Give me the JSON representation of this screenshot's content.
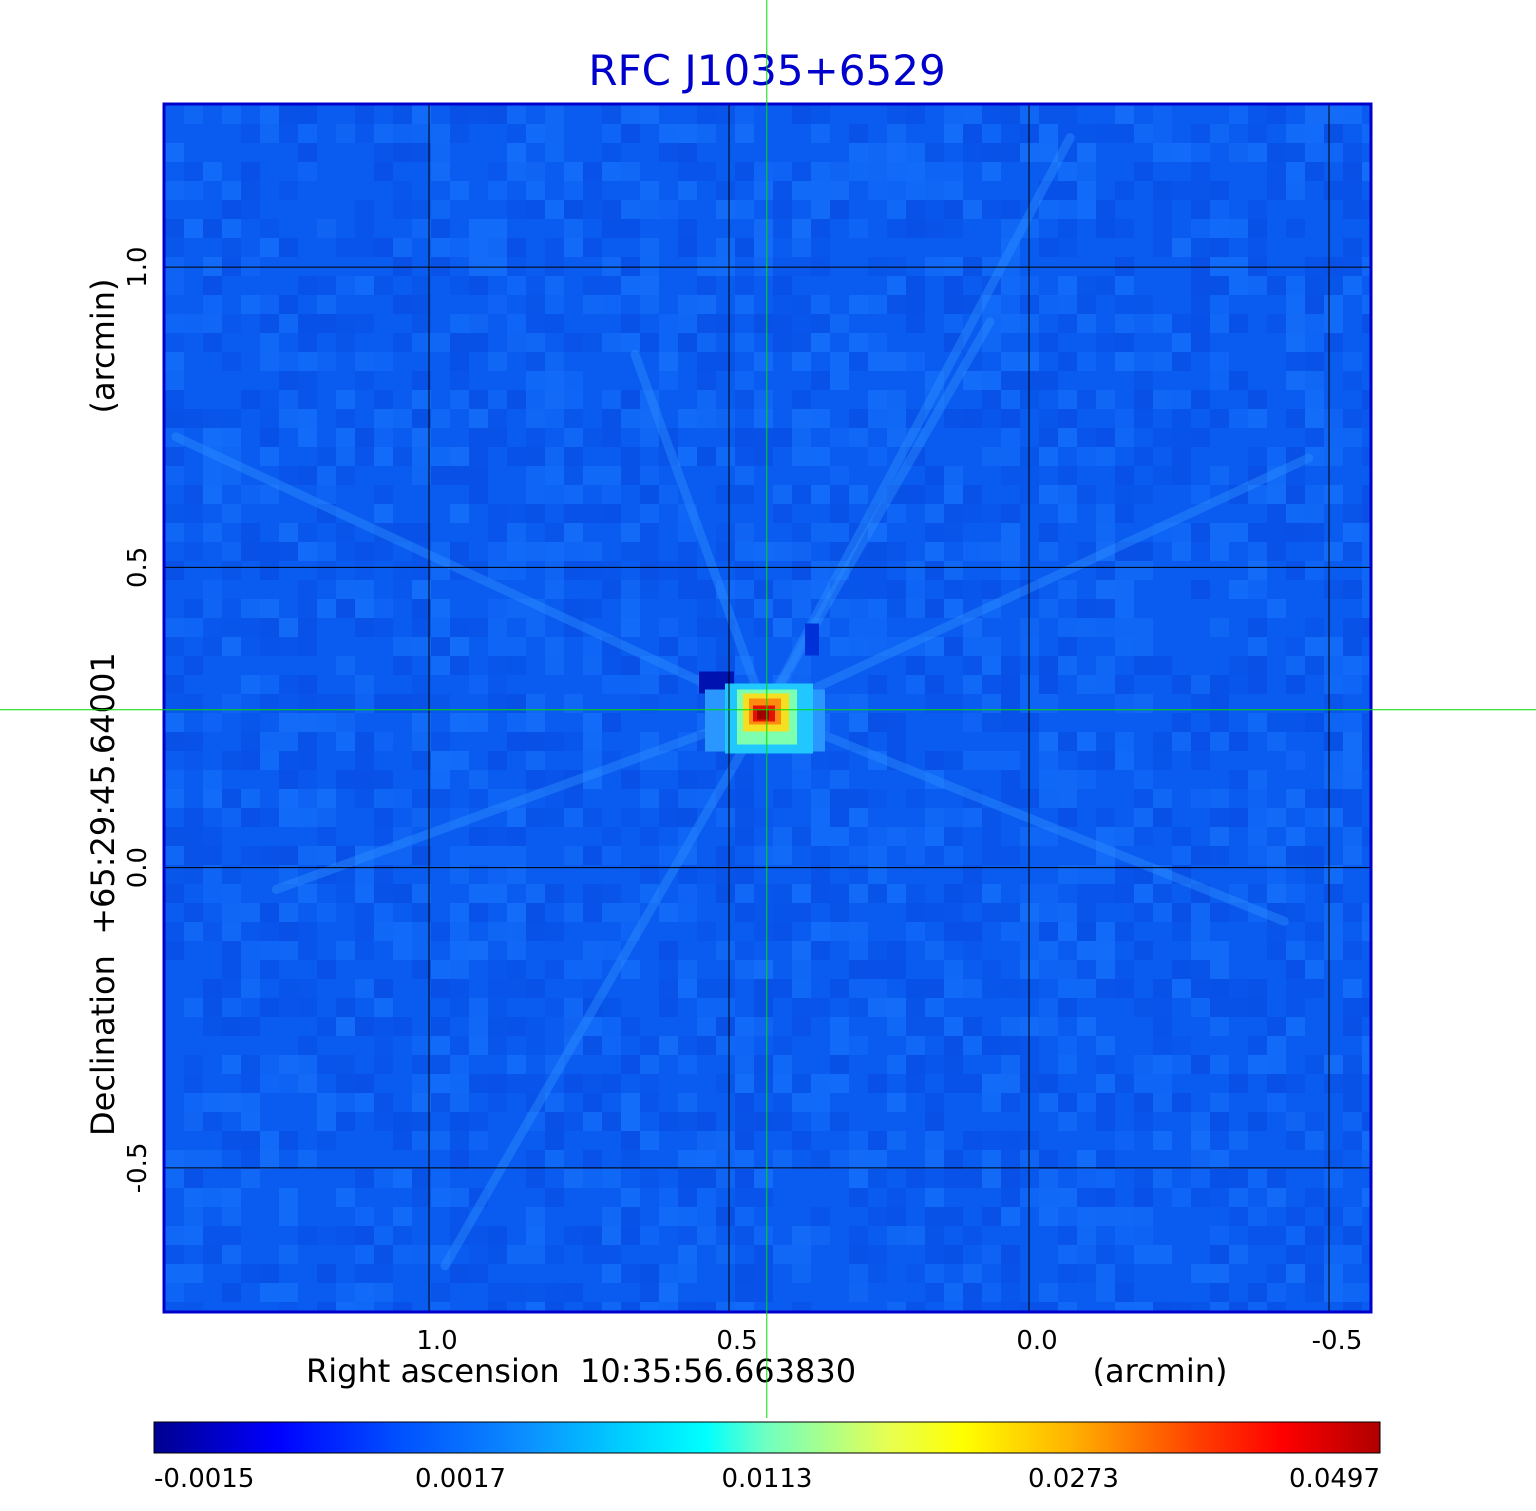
{
  "chart_data": {
    "type": "heatmap",
    "title": "RFC J1035+6529",
    "xlabel": "Right ascension  10:35:56.663830",
    "xunit": "(arcmin)",
    "ylabel": "Declination  +65:29:45.64001",
    "yunit": "(arcmin)",
    "x_axis_reversed": true,
    "xlim": [
      1.44,
      -0.57
    ],
    "ylim": [
      -0.74,
      1.27
    ],
    "x_ticks": [
      {
        "value": 1.0,
        "label": "1.0"
      },
      {
        "value": 0.5,
        "label": "0.5"
      },
      {
        "value": 0.0,
        "label": "0.0"
      },
      {
        "value": -0.5,
        "label": "-0.5"
      }
    ],
    "y_ticks": [
      {
        "value": 1.0,
        "label": "1.0"
      },
      {
        "value": 0.5,
        "label": "0.5"
      },
      {
        "value": 0.0,
        "label": "0.0"
      },
      {
        "value": -0.5,
        "label": "-0.5"
      }
    ],
    "grid": true,
    "crosshair": {
      "x": 0.437,
      "y": 0.263,
      "color": "#00dd00"
    },
    "peak": {
      "x": 0.44,
      "y": 0.26
    },
    "colorbar": {
      "placement": "bottom",
      "ticks": [
        "-0.0015",
        "0.0017",
        "0.0113",
        "0.0273",
        "0.0497"
      ],
      "colors": [
        "#00008f",
        "#0020ff",
        "#0a6cff",
        "#00ffff",
        "#ffff00",
        "#ff0000",
        "#b00000"
      ]
    },
    "frame_color": "#0000cc",
    "title_color": "#0000cc",
    "background_color": "#0a5cf0"
  }
}
